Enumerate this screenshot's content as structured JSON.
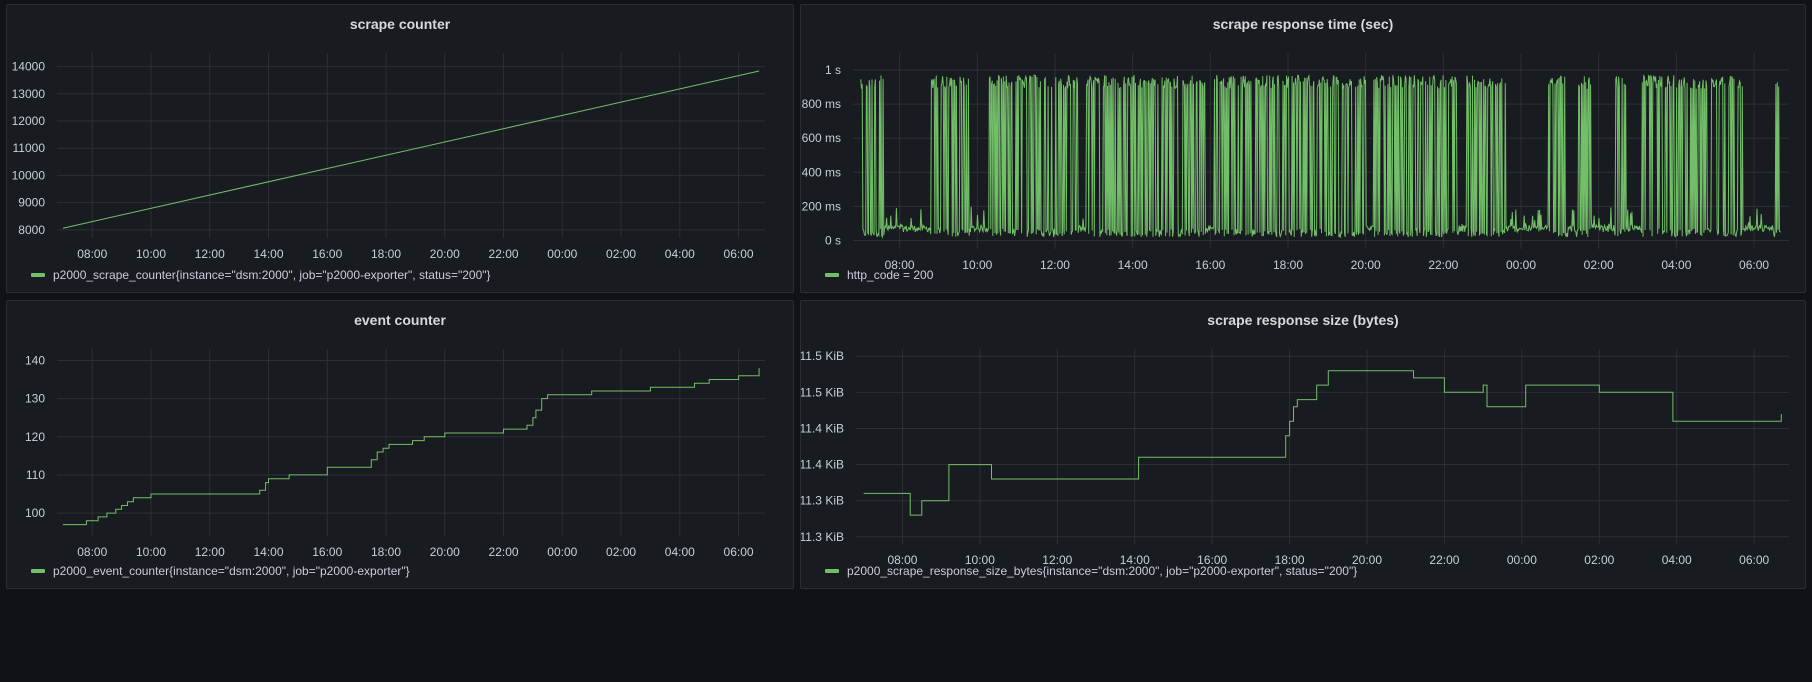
{
  "colors": {
    "series": "#73bf69",
    "panel_bg": "#181b1f",
    "page_bg": "#111217",
    "grid": "#2c2f35"
  },
  "chart_data": [
    {
      "id": "scrape-counter",
      "type": "line",
      "title": "scrape counter",
      "legend": "p2000_scrape_counter{instance=\"dsm:2000\", job=\"p2000-exporter\", status=\"200\"}",
      "xticks": [
        "08:00",
        "10:00",
        "12:00",
        "14:00",
        "16:00",
        "18:00",
        "20:00",
        "22:00",
        "00:00",
        "02:00",
        "04:00",
        "06:00"
      ],
      "x_range": [
        6.8,
        30.9
      ],
      "yticks": [
        8000,
        9000,
        10000,
        11000,
        12000,
        13000,
        14000
      ],
      "ytick_labels": [
        "8000",
        "9000",
        "10000",
        "11000",
        "12000",
        "13000",
        "14000"
      ],
      "ylim": [
        7700,
        14500
      ],
      "series": [
        {
          "name": "p2000_scrape_counter",
          "x": [
            7.0,
            30.7
          ],
          "y": [
            8060,
            13840
          ]
        }
      ]
    },
    {
      "id": "scrape-response-time",
      "type": "line",
      "title": "scrape response time (sec)",
      "legend": "http_code = 200",
      "xticks": [
        "08:00",
        "10:00",
        "12:00",
        "14:00",
        "16:00",
        "18:00",
        "20:00",
        "22:00",
        "00:00",
        "02:00",
        "04:00",
        "06:00"
      ],
      "x_range": [
        6.8,
        30.9
      ],
      "yticks": [
        0,
        0.2,
        0.4,
        0.6,
        0.8,
        1.0
      ],
      "ytick_labels": [
        "0 s",
        "200 ms",
        "400 ms",
        "600 ms",
        "800 ms",
        "1 s"
      ],
      "ylim": [
        -0.05,
        1.1
      ],
      "series": [
        {
          "name": "http_code = 200",
          "pattern": "noisy-toggle",
          "x_start": 7.0,
          "x_end": 30.7,
          "high": 0.97,
          "low": 0.02,
          "dense_segments": [
            [
              7.0,
              7.6
            ],
            [
              8.8,
              9.8
            ],
            [
              10.3,
              12.6
            ],
            [
              12.8,
              15.9
            ],
            [
              16.1,
              20.0
            ],
            [
              20.2,
              22.4
            ],
            [
              22.6,
              23.6
            ],
            [
              24.7,
              25.2
            ],
            [
              25.4,
              25.8
            ],
            [
              26.4,
              26.7
            ],
            [
              27.1,
              28.8
            ],
            [
              28.9,
              29.7
            ],
            [
              30.5,
              30.7
            ]
          ],
          "quiet_value": 0.05
        }
      ]
    },
    {
      "id": "event-counter",
      "type": "line",
      "title": "event counter",
      "legend": "p2000_event_counter{instance=\"dsm:2000\", job=\"p2000-exporter\"}",
      "xticks": [
        "08:00",
        "10:00",
        "12:00",
        "14:00",
        "16:00",
        "18:00",
        "20:00",
        "22:00",
        "00:00",
        "02:00",
        "04:00",
        "06:00"
      ],
      "x_range": [
        6.8,
        30.9
      ],
      "yticks": [
        100,
        110,
        120,
        130,
        140
      ],
      "ytick_labels": [
        "100",
        "110",
        "120",
        "130",
        "140"
      ],
      "ylim": [
        94,
        143
      ],
      "series": [
        {
          "name": "p2000_event_counter",
          "step": true,
          "x": [
            7.0,
            7.8,
            8.2,
            8.5,
            8.8,
            9.0,
            9.2,
            9.4,
            9.6,
            10.0,
            11.0,
            12.0,
            13.0,
            13.7,
            13.9,
            14.0,
            14.2,
            14.7,
            15.5,
            16.0,
            17.5,
            17.7,
            17.9,
            18.1,
            18.5,
            18.9,
            19.3,
            19.6,
            20.0,
            21.0,
            22.0,
            22.5,
            22.8,
            23.0,
            23.1,
            23.3,
            23.5,
            24.0,
            25.0,
            26.0,
            27.0,
            28.0,
            28.5,
            29.0,
            30.0,
            30.5,
            30.7
          ],
          "y": [
            97,
            98,
            99,
            100,
            101,
            102,
            103,
            104,
            104,
            105,
            105,
            105,
            105,
            106,
            108,
            109,
            109,
            110,
            110,
            112,
            114,
            116,
            117,
            118,
            118,
            119,
            120,
            120,
            121,
            121,
            122,
            122,
            123,
            125,
            127,
            130,
            131,
            131,
            132,
            132,
            133,
            133,
            134,
            135,
            136,
            136,
            138
          ]
        }
      ]
    },
    {
      "id": "scrape-response-size",
      "type": "line",
      "title": "scrape response size (bytes)",
      "legend": "p2000_scrape_response_size_bytes{instance=\"dsm:2000\", job=\"p2000-exporter\", status=\"200\"}",
      "xticks": [
        "08:00",
        "10:00",
        "12:00",
        "14:00",
        "16:00",
        "18:00",
        "20:00",
        "22:00",
        "00:00",
        "02:00",
        "04:00",
        "06:00"
      ],
      "x_range": [
        6.8,
        30.9
      ],
      "yticks": [
        11.3,
        11.35,
        11.4,
        11.45,
        11.5,
        11.55
      ],
      "ytick_labels": [
        "11.3 KiB",
        "11.3 KiB",
        "11.4 KiB",
        "11.4 KiB",
        "11.5 KiB",
        "11.5 KiB"
      ],
      "ylim": [
        11.29,
        11.56
      ],
      "series": [
        {
          "name": "p2000_scrape_response_size_bytes",
          "step": true,
          "x": [
            7.0,
            7.9,
            8.2,
            8.4,
            8.5,
            9.0,
            9.2,
            10.2,
            10.3,
            14.0,
            14.1,
            17.7,
            17.9,
            18.0,
            18.1,
            18.2,
            18.7,
            19.0,
            21.0,
            21.2,
            22.0,
            22.9,
            23.0,
            23.1,
            23.5,
            24.0,
            24.1,
            26.0,
            27.5,
            27.9,
            30.4,
            30.7
          ],
          "y": [
            11.36,
            11.36,
            11.33,
            11.33,
            11.35,
            11.35,
            11.4,
            11.4,
            11.38,
            11.38,
            11.41,
            11.41,
            11.44,
            11.46,
            11.48,
            11.49,
            11.51,
            11.53,
            11.53,
            11.52,
            11.5,
            11.5,
            11.51,
            11.48,
            11.48,
            11.48,
            11.51,
            11.5,
            11.5,
            11.46,
            11.46,
            11.47
          ]
        }
      ]
    }
  ]
}
